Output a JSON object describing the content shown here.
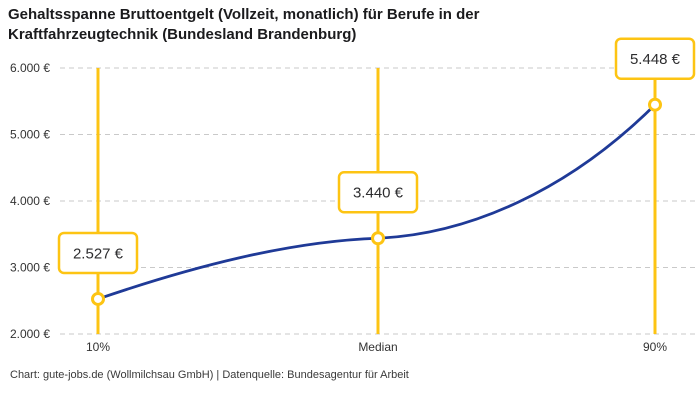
{
  "header": {
    "title_lines": [
      "Gehaltsspanne Bruttoentgelt (Vollzeit, monatlich) für Berufe in der",
      "Kraftfahrzeugtechnik (Bundesland Brandenburg)"
    ]
  },
  "footer": {
    "credit": "Chart: gute-jobs.de (Wollmilchsau GmbH) | Datenquelle: Bundesagentur für Arbeit"
  },
  "chart_data": {
    "type": "line",
    "title": "Gehaltsspanne Bruttoentgelt (Vollzeit, monatlich) für Berufe in der Kraftfahrzeugtechnik (Bundesland Brandenburg)",
    "categories": [
      "10%",
      "Median",
      "90%"
    ],
    "values": [
      2527,
      3440,
      5448
    ],
    "point_labels": [
      "2.527 €",
      "3.440 €",
      "5.448 €"
    ],
    "xlabel": "",
    "ylabel": "",
    "ylim": [
      2000,
      6000
    ],
    "y_tick_values": [
      2000,
      3000,
      4000,
      5000,
      6000
    ],
    "y_tick_labels": [
      "2.000 €",
      "3.000 €",
      "4.000 €",
      "5.000 €",
      "6.000 €"
    ],
    "grid": "horizontal-dashed",
    "legend": "none",
    "colors": {
      "accent_yellow": "#fdc413",
      "line_blue": "#1f3a97",
      "grid": "#c9c9c9",
      "text": "#333333",
      "title": "#1b1b1d",
      "background": "#ffffff"
    }
  }
}
